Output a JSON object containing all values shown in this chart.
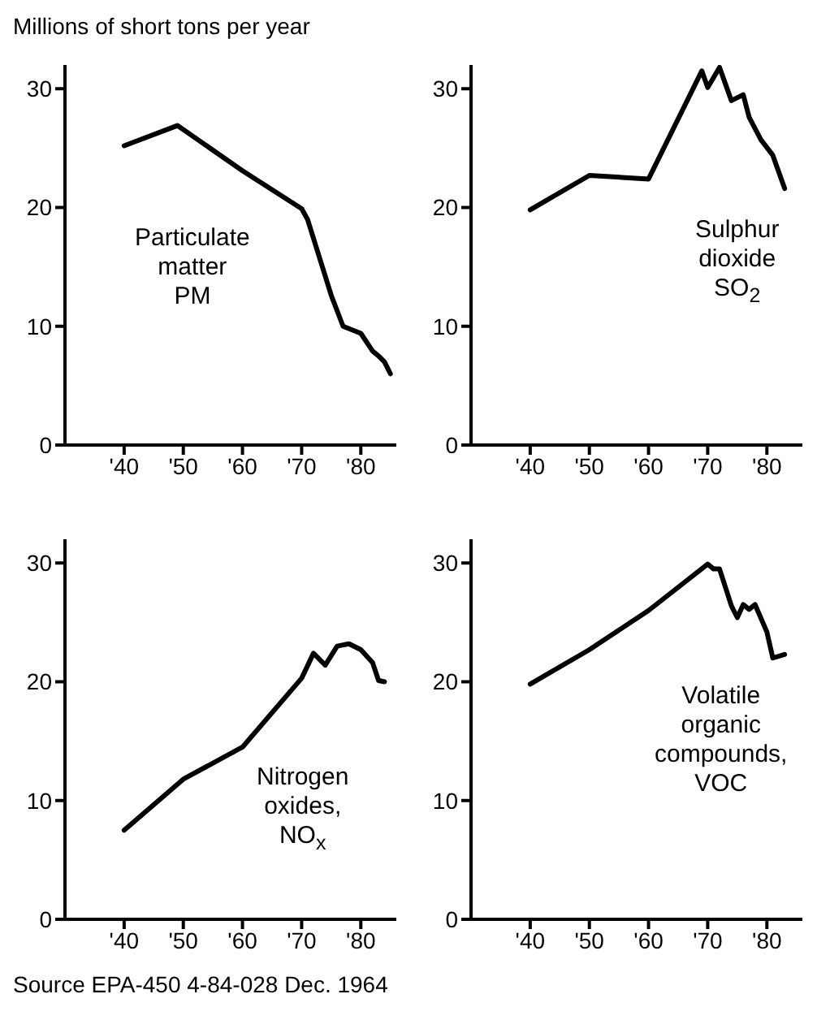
{
  "chart_data": [
    {
      "type": "line",
      "ylabel": "Millions of short tons per year",
      "annotations": [
        "Particulate\nmatter\nPM"
      ],
      "color": "#000000",
      "x": [
        1940,
        1949,
        1960,
        1970,
        1971,
        1975,
        1977,
        1980,
        1982,
        1983,
        1984,
        1985
      ],
      "values": [
        25.2,
        26.9,
        23.1,
        19.9,
        19,
        12.6,
        10,
        9.4,
        7.9,
        7.5,
        7,
        6
      ],
      "xlim": [
        1930,
        1986
      ],
      "xticks": [
        {
          "value": 1940,
          "label": "'40"
        },
        {
          "value": 1950,
          "label": "'50"
        },
        {
          "value": 1960,
          "label": "'60"
        },
        {
          "value": 1970,
          "label": "'70"
        },
        {
          "value": 1980,
          "label": "'80"
        }
      ],
      "ylim": [
        0,
        32
      ],
      "yticks": [
        0,
        10,
        20,
        30
      ]
    },
    {
      "type": "line",
      "annotations": [
        "Sulphur\ndioxide\nSO$_{2}$"
      ],
      "color": "#000000",
      "x": [
        1940,
        1950,
        1960,
        1969,
        1970,
        1972,
        1974,
        1976,
        1977,
        1979,
        1981,
        1983
      ],
      "values": [
        19.8,
        22.7,
        22.4,
        31.5,
        30.1,
        31.8,
        29,
        29.5,
        27.6,
        25.7,
        24.4,
        21.6
      ],
      "xlim": [
        1930,
        1986
      ],
      "xticks": [
        {
          "value": 1940,
          "label": "'40"
        },
        {
          "value": 1950,
          "label": "'50"
        },
        {
          "value": 1960,
          "label": "'60"
        },
        {
          "value": 1970,
          "label": "'70"
        },
        {
          "value": 1980,
          "label": "'80"
        }
      ],
      "ylim": [
        0,
        32
      ],
      "yticks": [
        0,
        10,
        20,
        30
      ]
    },
    {
      "type": "line",
      "annotations": [
        "Nitrogen\noxides,\nNO$_{x}$"
      ],
      "color": "#000000",
      "x": [
        1940,
        1950,
        1960,
        1970,
        1972,
        1974,
        1976,
        1978,
        1980,
        1982,
        1983,
        1984
      ],
      "values": [
        7.5,
        11.8,
        14.5,
        20.3,
        22.4,
        21.4,
        23,
        23.2,
        22.7,
        21.6,
        20.1,
        20
      ],
      "xlim": [
        1930,
        1986
      ],
      "xticks": [
        {
          "value": 1940,
          "label": "'40"
        },
        {
          "value": 1950,
          "label": "'50"
        },
        {
          "value": 1960,
          "label": "'60"
        },
        {
          "value": 1970,
          "label": "'70"
        },
        {
          "value": 1980,
          "label": "'80"
        }
      ],
      "ylim": [
        0,
        32
      ],
      "yticks": [
        0,
        10,
        20,
        30
      ]
    },
    {
      "type": "line",
      "annotations": [
        "Volatile\norganic\ncompounds,\nVOC",
        "Source EPA-450 4-84-028 Dec. 1964"
      ],
      "color": "#000000",
      "x": [
        1940,
        1950,
        1960,
        1970,
        1971,
        1972,
        1974,
        1975,
        1976,
        1977,
        1978,
        1980,
        1981,
        1983
      ],
      "values": [
        19.8,
        22.7,
        26,
        29.9,
        29.5,
        29.5,
        26.4,
        25.4,
        26.5,
        26.1,
        26.5,
        24.2,
        22,
        22.3
      ],
      "xlim": [
        1930,
        1986
      ],
      "xticks": [
        {
          "value": 1940,
          "label": "'40"
        },
        {
          "value": 1950,
          "label": "'50"
        },
        {
          "value": 1960,
          "label": "'60"
        },
        {
          "value": 1970,
          "label": "'70"
        },
        {
          "value": 1980,
          "label": "'80"
        }
      ],
      "ylim": [
        0,
        32
      ],
      "yticks": [
        0,
        10,
        20,
        30
      ]
    }
  ]
}
